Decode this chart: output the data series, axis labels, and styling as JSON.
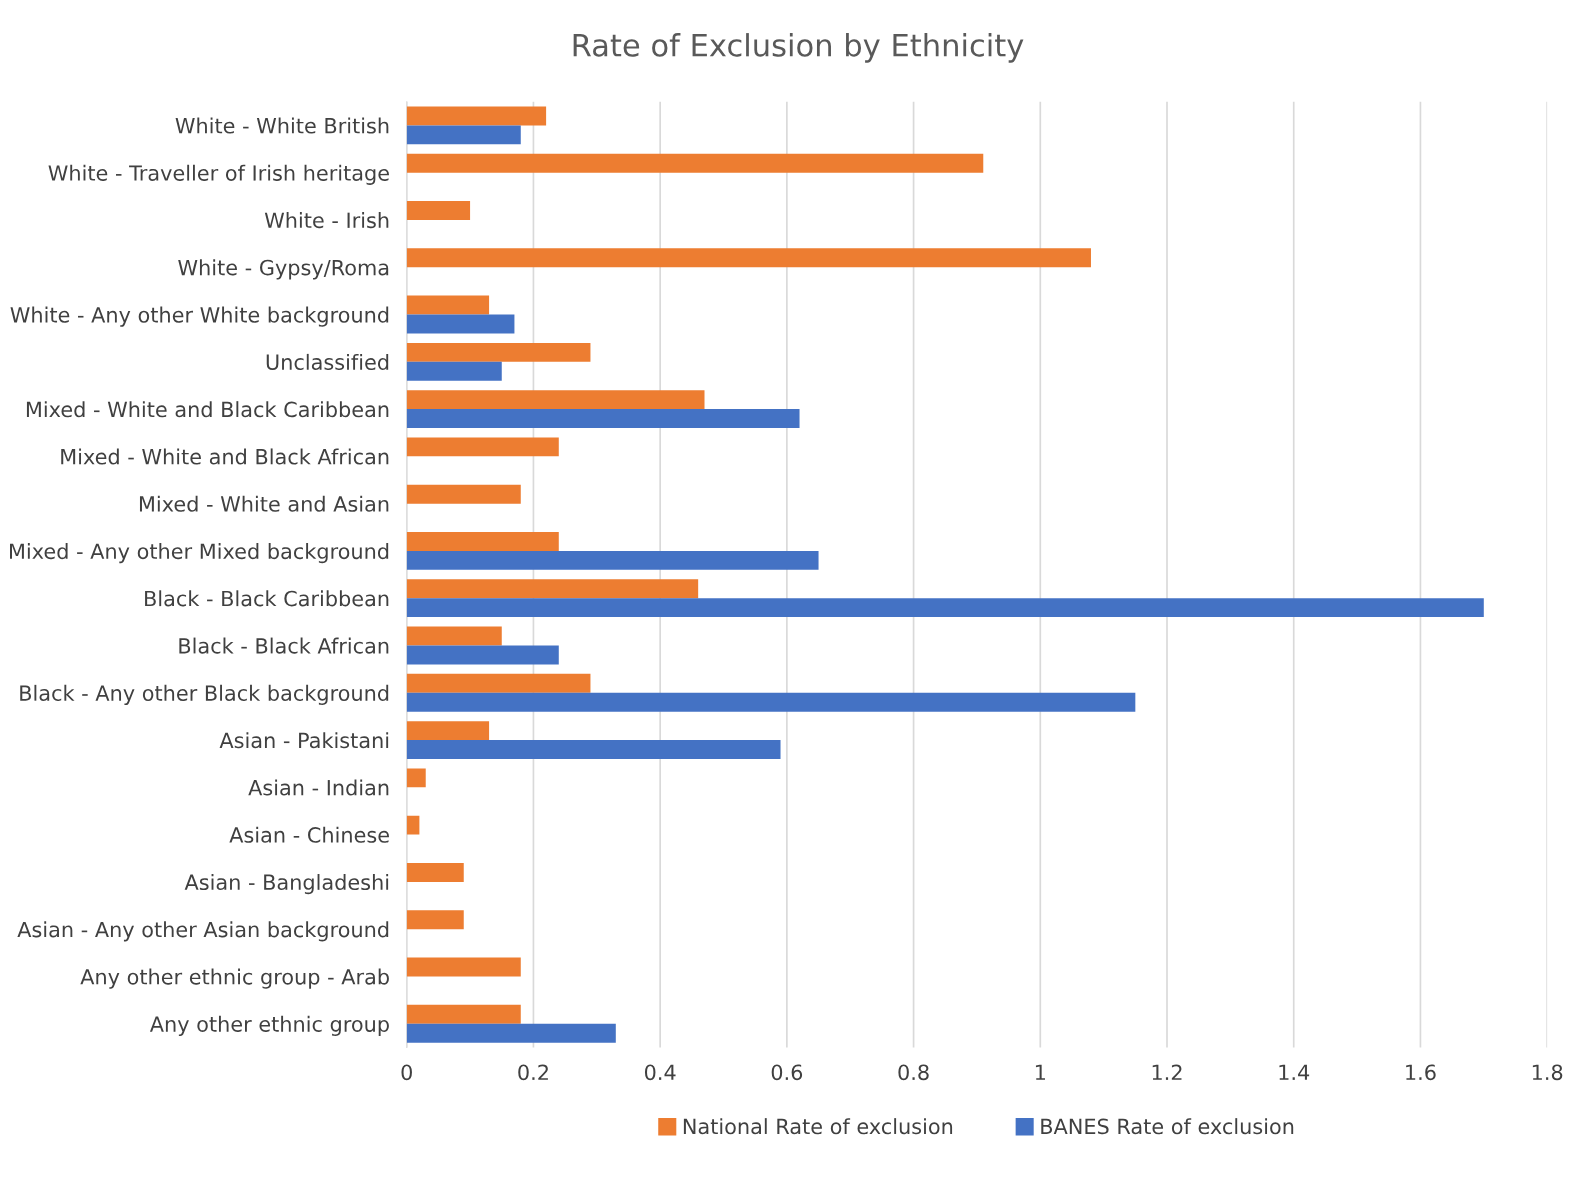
{
  "chart_data": {
    "type": "bar",
    "orientation": "horizontal",
    "title": "Rate of Exclusion by Ethnicity",
    "categories": [
      "White - White British",
      "White - Traveller of Irish heritage",
      "White - Irish",
      "White - Gypsy/Roma",
      "White - Any other White background",
      "Unclassified",
      "Mixed - White and Black Caribbean",
      "Mixed - White and Black African",
      "Mixed - White and Asian",
      "Mixed - Any other Mixed background",
      "Black - Black Caribbean",
      "Black - Black African",
      "Black - Any other Black background",
      "Asian - Pakistani",
      "Asian - Indian",
      "Asian - Chinese",
      "Asian - Bangladeshi",
      "Asian - Any other Asian background",
      "Any other ethnic group - Arab",
      "Any other ethnic group"
    ],
    "series": [
      {
        "name": "National Rate of exclusion",
        "color": "#ed7d31",
        "values": [
          0.22,
          0.91,
          0.1,
          1.08,
          0.13,
          0.29,
          0.47,
          0.24,
          0.18,
          0.24,
          0.46,
          0.15,
          0.29,
          0.13,
          0.03,
          0.02,
          0.09,
          0.09,
          0.18,
          0.18
        ]
      },
      {
        "name": "BANES Rate of exclusion",
        "color": "#4472c4",
        "values": [
          0.18,
          null,
          null,
          null,
          0.17,
          0.15,
          0.62,
          null,
          null,
          0.65,
          1.7,
          0.24,
          1.15,
          0.59,
          null,
          null,
          null,
          null,
          null,
          0.33
        ]
      }
    ],
    "xlim": [
      0,
      1.8
    ],
    "xticks": [
      0,
      {
        "value": 0.2,
        "label": "0.2"
      },
      {
        "value": 0.4,
        "label": "0.4"
      },
      {
        "value": 0.6,
        "label": "0.6"
      },
      {
        "value": 0.8,
        "label": "0.8"
      },
      1,
      {
        "value": 1.2,
        "label": "1.2"
      },
      {
        "value": 1.4,
        "label": "1.4"
      },
      {
        "value": 1.6,
        "label": "1.6"
      },
      {
        "value": 1.8,
        "label": "1.8"
      }
    ],
    "grid": "x",
    "legend": "bottom"
  }
}
